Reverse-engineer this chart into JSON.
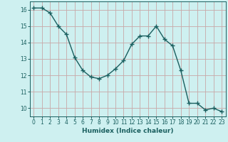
{
  "x": [
    0,
    1,
    2,
    3,
    4,
    5,
    6,
    7,
    8,
    9,
    10,
    11,
    12,
    13,
    14,
    15,
    16,
    17,
    18,
    19,
    20,
    21,
    22,
    23
  ],
  "y": [
    16.1,
    16.1,
    15.8,
    15.0,
    14.5,
    13.1,
    12.3,
    11.9,
    11.8,
    12.0,
    12.4,
    12.9,
    13.9,
    14.4,
    14.4,
    15.0,
    14.2,
    13.8,
    12.3,
    10.3,
    10.3,
    9.9,
    10.0,
    9.8
  ],
  "xlabel": "Humidex (Indice chaleur)",
  "ylim": [
    9.5,
    16.5
  ],
  "xlim": [
    -0.5,
    23.5
  ],
  "bg_color": "#cef0f0",
  "grid_color": "#c8a8a8",
  "line_color": "#1a5f5f",
  "yticks": [
    10,
    11,
    12,
    13,
    14,
    15,
    16
  ],
  "xticks": [
    0,
    1,
    2,
    3,
    4,
    5,
    6,
    7,
    8,
    9,
    10,
    11,
    12,
    13,
    14,
    15,
    16,
    17,
    18,
    19,
    20,
    21,
    22,
    23
  ]
}
